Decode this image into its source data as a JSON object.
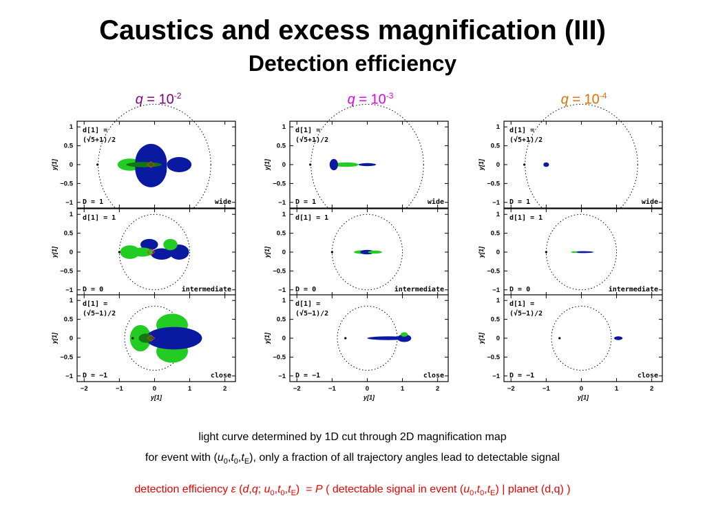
{
  "title": "Caustics and excess magnification (III)",
  "subtitle": "Detection efficiency",
  "columns": [
    {
      "q_symbol": "q",
      "eq": " = 10",
      "exp": "-2",
      "color": "#800080"
    },
    {
      "q_symbol": "q",
      "eq": " = 10",
      "exp": "-3",
      "color": "#e000e0"
    },
    {
      "q_symbol": "q",
      "eq": " = 10",
      "exp": "-4",
      "color": "#e07000"
    }
  ],
  "rows": [
    {
      "d_label_1": "d[1] =",
      "d_label_2": "(√5+1)/2",
      "D_label": "D = 1",
      "regime": "wide"
    },
    {
      "d_label_1": "d[1] = 1",
      "d_label_2": "",
      "D_label": "D = 0",
      "regime": "intermediate"
    },
    {
      "d_label_1": "d[1] =",
      "d_label_2": "(√5−1)/2",
      "D_label": "D = −1",
      "regime": "close"
    }
  ],
  "axes": {
    "x_label": "y[1]",
    "y_label": "y[1]",
    "x_ticks": [
      "−2",
      "−1",
      "0",
      "1",
      "2"
    ],
    "y_ticks": [
      "1",
      "0.5",
      "0",
      "−0.5",
      "−1"
    ],
    "x_range": [
      -2.2,
      2.3
    ],
    "y_range": [
      -1.15,
      1.15
    ]
  },
  "caption": {
    "line1": "light curve determined by 1D cut through 2D magnification map",
    "line2_a": "for event with (",
    "line2_b": "), only a fraction of all trajectory angles lead to detectable signal",
    "line3_a": "detection efficiency ",
    "line3_b": "( detectable signal in event (",
    "line3_c": ") | planet (d,q) )"
  },
  "colors": {
    "green": "#22cc22",
    "blue": "#0a1aa0",
    "dark_green": "#117711",
    "red": "#ff2a2a"
  }
}
